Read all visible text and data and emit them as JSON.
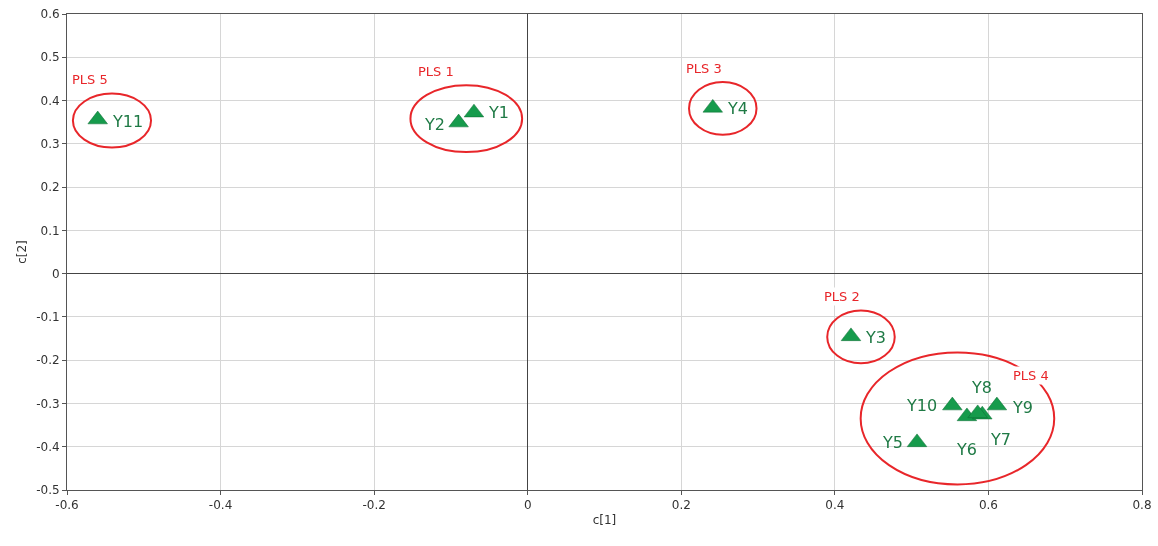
{
  "chart_data": {
    "type": "scatter",
    "xlabel": "c[1]",
    "ylabel": "c[2]",
    "marker": "triangle",
    "legend": false,
    "grid": true,
    "xlim": [
      -0.6,
      0.8
    ],
    "xticks": [
      -0.6,
      -0.4,
      -0.2,
      0,
      0.2,
      0.4,
      0.6,
      0.8
    ],
    "ylim": [
      -0.5,
      0.6
    ],
    "yticks": [
      -0.5,
      -0.4,
      -0.3,
      -0.2,
      -0.1,
      0,
      0.1,
      0.2,
      0.3,
      0.4,
      0.5,
      0.6
    ],
    "series": [
      {
        "name": "PLS 5",
        "color": "#169b4c",
        "x": [
          -0.56
        ],
        "values": [
          0.356
        ]
      },
      {
        "name": "PLS 1",
        "color": "#169b4c",
        "x": [
          -0.07,
          -0.09
        ],
        "values": [
          0.372,
          0.349
        ]
      },
      {
        "name": "PLS 3",
        "color": "#169b4c",
        "x": [
          0.241
        ],
        "values": [
          0.383
        ]
      },
      {
        "name": "PLS 2",
        "color": "#169b4c",
        "x": [
          0.421
        ],
        "values": [
          -0.145
        ]
      },
      {
        "name": "PLS 4",
        "color": "#169b4c",
        "x": [
          0.507,
          0.572,
          0.592,
          0.586,
          0.611,
          0.553
        ],
        "values": [
          -0.39,
          -0.33,
          -0.326,
          -0.323,
          -0.305,
          -0.305
        ]
      }
    ],
    "annotations": [
      {
        "text": "Y11",
        "x": -0.56,
        "y": 0.356
      },
      {
        "text": "Y1",
        "x": -0.07,
        "y": 0.372
      },
      {
        "text": "Y2",
        "x": -0.09,
        "y": 0.349
      },
      {
        "text": "Y4",
        "x": 0.241,
        "y": 0.383
      },
      {
        "text": "Y3",
        "x": 0.421,
        "y": -0.145
      },
      {
        "text": "Y5",
        "x": 0.507,
        "y": -0.39
      },
      {
        "text": "Y6",
        "x": 0.572,
        "y": -0.33
      },
      {
        "text": "Y7",
        "x": 0.592,
        "y": -0.326
      },
      {
        "text": "Y8",
        "x": 0.586,
        "y": -0.323
      },
      {
        "text": "Y9",
        "x": 0.611,
        "y": -0.305
      },
      {
        "text": "Y10",
        "x": 0.553,
        "y": -0.305
      }
    ]
  }
}
